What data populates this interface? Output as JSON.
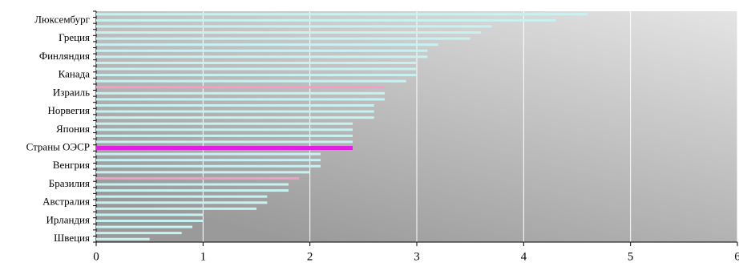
{
  "chart_data": {
    "type": "barh",
    "categories": [
      null,
      "Люксембург",
      null,
      null,
      "Греция",
      null,
      null,
      "Финляндия",
      null,
      null,
      "Канада",
      null,
      null,
      "Израиль",
      null,
      null,
      "Норвегия",
      null,
      null,
      "Япония",
      null,
      null,
      "Страны ОЭСР",
      null,
      null,
      "Венгрия",
      null,
      null,
      "Бразилия",
      null,
      null,
      "Австралия",
      null,
      null,
      "Ирландия",
      null,
      null,
      "Швеция"
    ],
    "values": [
      4.6,
      4.3,
      3.7,
      3.6,
      3.5,
      3.2,
      3.1,
      3.1,
      3.0,
      3.0,
      3.0,
      2.9,
      2.7,
      2.7,
      2.7,
      2.6,
      2.6,
      2.6,
      2.4,
      2.4,
      2.4,
      2.4,
      2.4,
      2.1,
      2.1,
      2.1,
      2.0,
      1.9,
      1.8,
      1.8,
      1.6,
      1.6,
      1.5,
      1.0,
      1.0,
      0.9,
      0.8,
      0.5
    ],
    "colors": [
      "#c8f2f2",
      "#c8f2f2",
      "#c8f2f2",
      "#c8f2f2",
      "#c8f2f2",
      "#c8f2f2",
      "#c8f2f2",
      "#c8f2f2",
      "#c8f2f2",
      "#c8f2f2",
      "#c8f2f2",
      "#c8f2f2",
      "#f0a0c8",
      "#c8f2f2",
      "#c8f2f2",
      "#c8f2f2",
      "#c8f2f2",
      "#c8f2f2",
      "#c8f2f2",
      "#c8f2f2",
      "#c8f2f2",
      "#c8f2f2",
      "#e020e0",
      "#c8f2f2",
      "#c8f2f2",
      "#c8f2f2",
      "#c8f2f2",
      "#f0a0c8",
      "#c8f2f2",
      "#c8f2f2",
      "#c8f2f2",
      "#c8f2f2",
      "#c8f2f2",
      "#c8f2f2",
      "#c8f2f2",
      "#c8f2f2",
      "#c8f2f2",
      "#c8f2f2"
    ],
    "xlim": [
      0,
      6
    ],
    "xticks": [
      0,
      1,
      2,
      3,
      4,
      5,
      6
    ],
    "grid": true
  }
}
